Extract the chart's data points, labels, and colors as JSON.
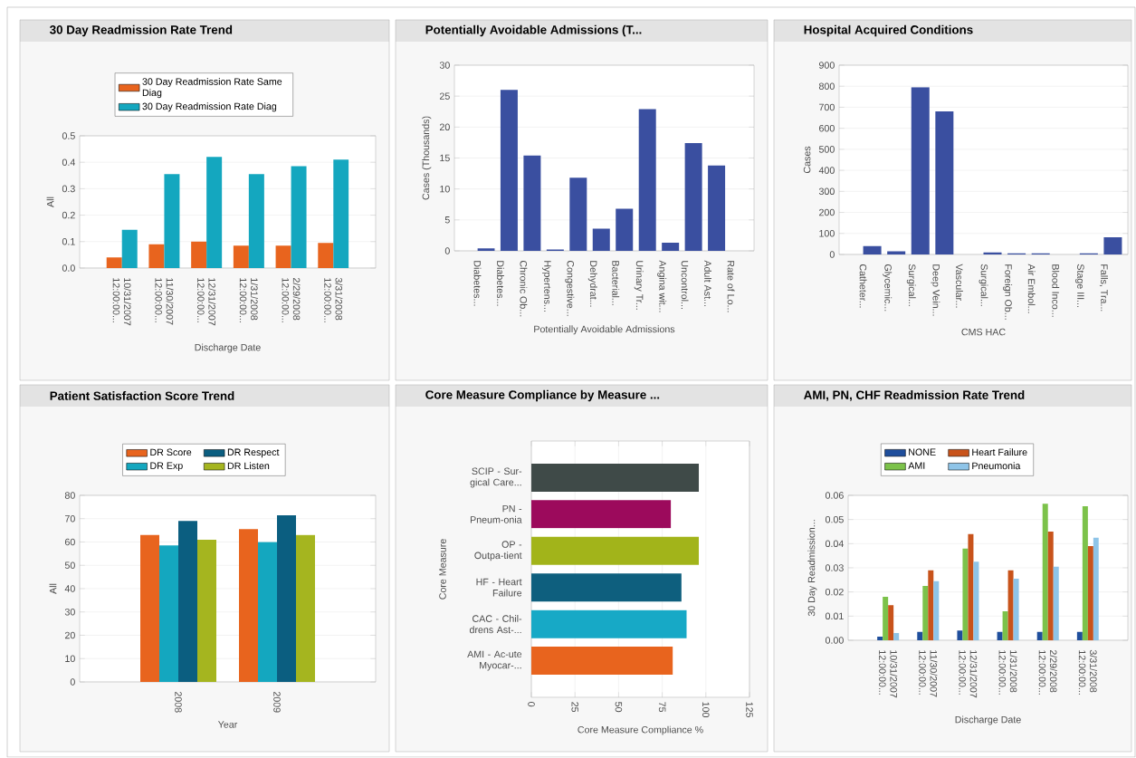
{
  "chart_data": [
    {
      "type": "bar",
      "title": "30 Day Readmission Rate Trend",
      "xlabel": "Discharge Date",
      "ylabel": "All",
      "categories": [
        "10/31/2007 12:00:00...",
        "11/30/2007 12:00:00...",
        "12/31/2007 12:00:00...",
        "1/31/2008 12:00:00...",
        "2/29/2008 12:00:00...",
        "3/31/2008 12:00:00..."
      ],
      "series": [
        {
          "name": "30 Day Readmission Rate Same Diag",
          "color": "#e8641e",
          "values": [
            0.04,
            0.09,
            0.1,
            0.085,
            0.085,
            0.095
          ]
        },
        {
          "name": "30 Day Readmission Rate Diag",
          "color": "#14a7bf",
          "values": [
            0.145,
            0.355,
            0.42,
            0.355,
            0.385,
            0.41
          ]
        }
      ],
      "ylim": [
        0,
        0.5
      ],
      "yticks": [
        {
          "value": 0,
          "label": "0.0"
        },
        0.1,
        0.2,
        0.3,
        0.4,
        0.5
      ],
      "grid": "y",
      "legend": "top"
    },
    {
      "type": "bar",
      "title": "Potentially Avoidable Admissions (T...",
      "xlabel": "Potentially Avoidable Admissions",
      "ylabel": "Cases (Thousands)",
      "categories": [
        "Diabetes...",
        "Diabetes...",
        "Chronic Ob...",
        "Hypertens...",
        "Congestive...",
        "Dehydrat...",
        "Bacterial...",
        "Urinary Tr...",
        "Angina wit...",
        "Uncontrol...",
        "Adult Ast...",
        "Rate of Lo..."
      ],
      "values": [
        0.4,
        26,
        15.4,
        0.2,
        11.8,
        3.6,
        6.8,
        22.9,
        1.3,
        17.4,
        13.8,
        0
      ],
      "color": "#3a4fa0",
      "ylim": [
        0,
        30
      ],
      "yticks": [
        0,
        5,
        10,
        15,
        20,
        25,
        30
      ],
      "grid": "y"
    },
    {
      "type": "bar",
      "title": "Hospital Acquired Conditions",
      "xlabel": "CMS HAC",
      "ylabel": "Cases",
      "categories": [
        "Catheter...",
        "Glycemic...",
        "Surgical...",
        "Deep Vein...",
        "Vascular...",
        "Surgical...",
        "Foreign Ob...",
        "Air Embol...",
        "Blood Inco...",
        "Stage III...",
        "Falls, Tra..."
      ],
      "values": [
        40,
        15,
        795,
        680,
        0,
        10,
        5,
        5,
        0,
        5,
        82
      ],
      "color": "#3a4fa0",
      "ylim": [
        0,
        900
      ],
      "yticks": [
        0,
        100,
        200,
        300,
        400,
        500,
        600,
        700,
        800,
        900
      ],
      "grid": "y"
    },
    {
      "type": "bar",
      "title": "Patient Satisfaction Score Trend",
      "xlabel": "Year",
      "ylabel": "All",
      "categories": [
        "2008",
        "2009"
      ],
      "series": [
        {
          "name": "DR Score",
          "color": "#e8641e",
          "values": [
            63,
            65.5
          ]
        },
        {
          "name": "DR Exp",
          "color": "#14a7bf",
          "values": [
            58.5,
            60
          ]
        },
        {
          "name": "DR Respect",
          "color": "#0b5e80",
          "values": [
            69,
            71.5
          ]
        },
        {
          "name": "DR Listen",
          "color": "#a5b51f",
          "values": [
            61,
            63
          ]
        }
      ],
      "ylim": [
        0,
        80
      ],
      "yticks": [
        0,
        10,
        20,
        30,
        40,
        50,
        60,
        70,
        80
      ],
      "grid": "y",
      "legend": "top"
    },
    {
      "type": "bar",
      "orientation": "horizontal",
      "title": "Core Measure Compliance by Measure ...",
      "xlabel": "Core Measure Compliance %",
      "ylabel": "Core Measure",
      "categories": [
        "SCIP - Sur-gical Care...",
        "PN - Pneum-onia",
        "OP - Outpa-tient",
        "HF - Heart Failure",
        "CAC - Chil-drens Ast-...",
        "AMI - Ac-ute Myocar-..."
      ],
      "values": [
        96,
        80,
        96,
        86,
        89,
        81
      ],
      "colors": [
        "#3f4a48",
        "#9c0a5c",
        "#a2b41a",
        "#0e5f7e",
        "#17a9c6",
        "#e8641e"
      ],
      "xlim": [
        0,
        125
      ],
      "xticks": [
        0,
        25,
        50,
        75,
        100,
        125
      ],
      "grid": "x"
    },
    {
      "type": "bar",
      "title": "AMI, PN, CHF Readmission Rate Trend",
      "xlabel": "Discharge Date",
      "ylabel": "30 Day Readmission...",
      "categories": [
        "10/31/2007 12:00:00...",
        "11/30/2007 12:00:00...",
        "12/31/2007 12:00:00...",
        "1/31/2008 12:00:00...",
        "2/29/2008 12:00:00...",
        "3/31/2008 12:00:00..."
      ],
      "series": [
        {
          "name": "NONE",
          "color": "#1f4e9c",
          "values": [
            0.0015,
            0.0035,
            0.004,
            0.0035,
            0.0035,
            0.0035
          ]
        },
        {
          "name": "AMI",
          "color": "#7cc24a",
          "values": [
            0.018,
            0.0225,
            0.038,
            0.012,
            0.0565,
            0.0555
          ]
        },
        {
          "name": "Heart Failure",
          "color": "#c8531b",
          "values": [
            0.0145,
            0.029,
            0.044,
            0.029,
            0.045,
            0.039
          ]
        },
        {
          "name": "Pneumonia",
          "color": "#8ec4e8",
          "values": [
            0.003,
            0.0245,
            0.0325,
            0.0255,
            0.0305,
            0.0425
          ]
        }
      ],
      "ylim": [
        0,
        0.06
      ],
      "yticks": [
        {
          "value": 0,
          "label": "0.00"
        },
        {
          "value": 0.01,
          "label": "0.01"
        },
        {
          "value": 0.02,
          "label": "0.02"
        },
        {
          "value": 0.03,
          "label": "0.03"
        },
        {
          "value": 0.04,
          "label": "0.04"
        },
        {
          "value": 0.05,
          "label": "0.05"
        },
        {
          "value": 0.06,
          "label": "0.06"
        }
      ],
      "grid": "y",
      "legend": "top"
    }
  ]
}
